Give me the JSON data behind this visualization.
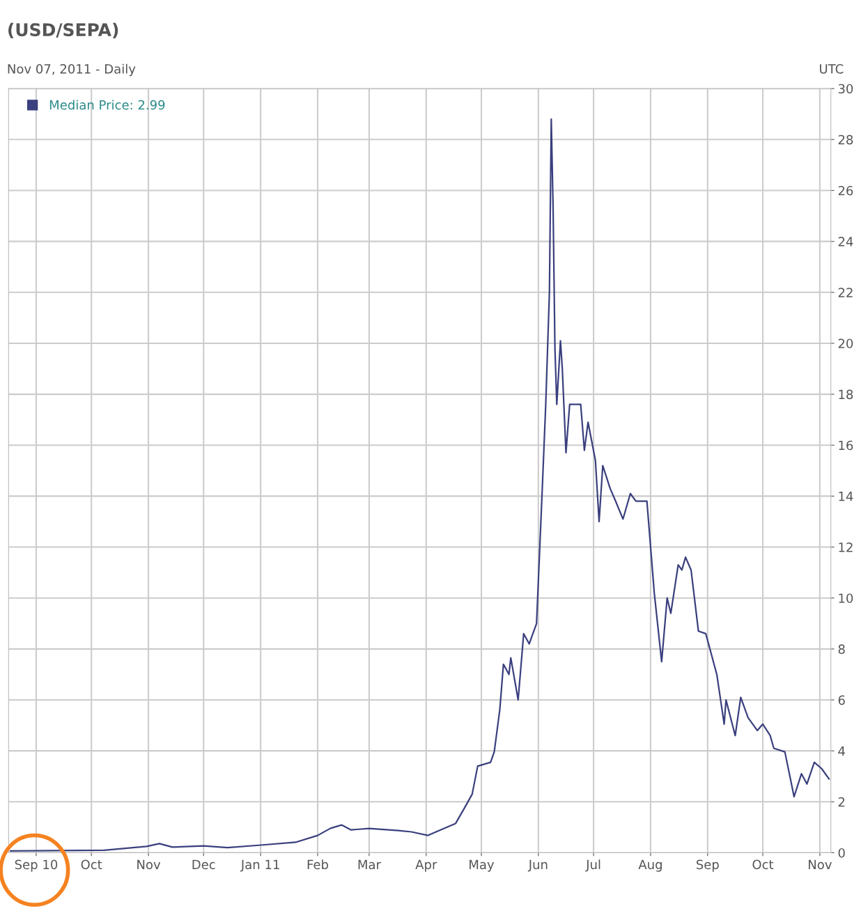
{
  "chart_data": {
    "type": "line",
    "title": "(USD/SEPA)",
    "subtitle": "Nov 07, 2011 - Daily",
    "annotations": [
      "UTC"
    ],
    "x": [
      "2010-08-18",
      "2010-10-08",
      "2010-10-31",
      "2010-11-07",
      "2010-11-14",
      "2010-12-01",
      "2010-12-14",
      "2011-01-01",
      "2011-01-20",
      "2011-02-01",
      "2011-02-08",
      "2011-02-14",
      "2011-02-19",
      "2011-03-01",
      "2011-03-17",
      "2011-03-24",
      "2011-04-02",
      "2011-04-09",
      "2011-04-17",
      "2011-04-22",
      "2011-04-26",
      "2011-04-29",
      "2011-05-06",
      "2011-05-08",
      "2011-05-11",
      "2011-05-13",
      "2011-05-16",
      "2011-05-17",
      "2011-05-21",
      "2011-05-24",
      "2011-05-27",
      "2011-05-31",
      "2011-06-03",
      "2011-06-05",
      "2011-06-07",
      "2011-06-08",
      "2011-06-09",
      "2011-06-10",
      "2011-06-11",
      "2011-06-13",
      "2011-06-14",
      "2011-06-16",
      "2011-06-18",
      "2011-06-24",
      "2011-06-26",
      "2011-06-28",
      "2011-07-02",
      "2011-07-04",
      "2011-07-06",
      "2011-07-10",
      "2011-07-13",
      "2011-07-17",
      "2011-07-21",
      "2011-07-24",
      "2011-07-30",
      "2011-08-03",
      "2011-08-07",
      "2011-08-10",
      "2011-08-12",
      "2011-08-16",
      "2011-08-18",
      "2011-08-20",
      "2011-08-23",
      "2011-08-27",
      "2011-08-31",
      "2011-09-06",
      "2011-09-10",
      "2011-09-11",
      "2011-09-16",
      "2011-09-19",
      "2011-09-23",
      "2011-09-28",
      "2011-10-01",
      "2011-10-05",
      "2011-10-07",
      "2011-10-13",
      "2011-10-18",
      "2011-10-22",
      "2011-10-25",
      "2011-10-29",
      "2011-11-02",
      "2011-11-06"
    ],
    "series": [
      {
        "name": "Median Price: 2.99",
        "color": "#3a3f7e",
        "values": [
          0.07,
          0.1,
          0.25,
          0.36,
          0.22,
          0.27,
          0.2,
          0.3,
          0.41,
          0.68,
          0.96,
          1.09,
          0.9,
          0.95,
          0.87,
          0.82,
          0.68,
          0.9,
          1.15,
          1.78,
          2.3,
          3.4,
          3.55,
          3.96,
          5.6,
          7.4,
          7.0,
          7.65,
          6.0,
          8.6,
          8.2,
          9.0,
          14.1,
          17.6,
          22.0,
          28.8,
          25.3,
          19.8,
          17.6,
          20.1,
          19.0,
          15.7,
          17.6,
          17.6,
          15.8,
          16.9,
          15.4,
          13.0,
          15.2,
          14.3,
          13.8,
          13.1,
          14.1,
          13.8,
          13.8,
          10.2,
          7.5,
          10.0,
          9.4,
          11.3,
          11.1,
          11.6,
          11.1,
          8.7,
          8.6,
          7.0,
          5.05,
          6.0,
          4.6,
          6.1,
          5.3,
          4.8,
          5.05,
          4.6,
          4.1,
          3.96,
          2.2,
          3.1,
          2.7,
          3.55,
          3.3,
          2.9
        ]
      }
    ],
    "xlim": [
      "2010-08-17",
      "2011-11-07"
    ],
    "xticks": [
      {
        "value": "2010-09-01",
        "label": "Sep 10"
      },
      {
        "value": "2010-10-01",
        "label": "Oct"
      },
      {
        "value": "2010-11-01",
        "label": "Nov"
      },
      {
        "value": "2010-12-01",
        "label": "Dec"
      },
      {
        "value": "2011-01-01",
        "label": "Jan 11"
      },
      {
        "value": "2011-02-01",
        "label": "Feb"
      },
      {
        "value": "2011-03-01",
        "label": "Mar"
      },
      {
        "value": "2011-04-01",
        "label": "Apr"
      },
      {
        "value": "2011-05-01",
        "label": "May"
      },
      {
        "value": "2011-06-01",
        "label": "Jun"
      },
      {
        "value": "2011-07-01",
        "label": "Jul"
      },
      {
        "value": "2011-08-01",
        "label": "Aug"
      },
      {
        "value": "2011-09-01",
        "label": "Sep"
      },
      {
        "value": "2011-10-01",
        "label": "Oct"
      },
      {
        "value": "2011-11-01",
        "label": "Nov"
      }
    ],
    "ylim": [
      0,
      30
    ],
    "yticks": [
      0,
      2,
      4,
      6,
      8,
      10,
      12,
      14,
      16,
      18,
      20,
      22,
      24,
      26,
      28,
      30
    ],
    "grid": true,
    "legend": "top left",
    "marker": "none",
    "line_style": "solid"
  }
}
